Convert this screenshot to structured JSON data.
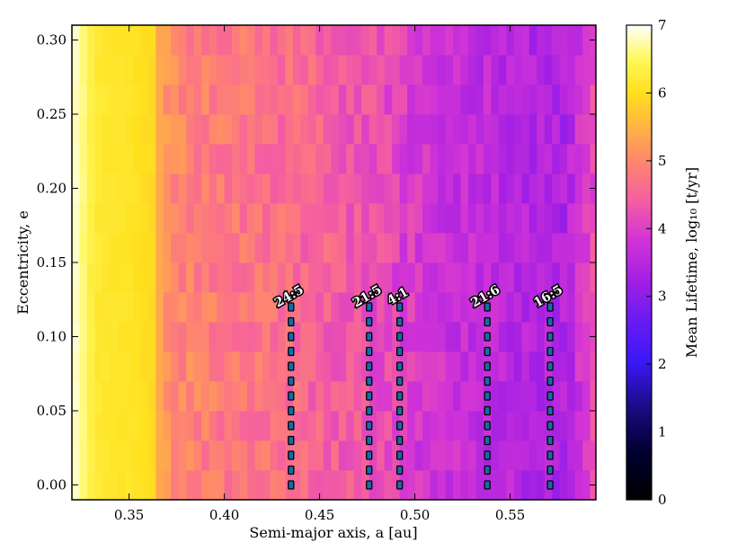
{
  "chart_data": {
    "type": "heatmap",
    "xlabel": "Semi-major axis, a [au]",
    "ylabel": "Eccentricity, e",
    "xlim": [
      0.32,
      0.595
    ],
    "ylim": [
      -0.01,
      0.31
    ],
    "x_ticks": [
      "0.35",
      "0.40",
      "0.45",
      "0.50",
      "0.55"
    ],
    "x_tick_values": [
      0.35,
      0.4,
      0.45,
      0.5,
      0.55
    ],
    "y_ticks": [
      "0.00",
      "0.05",
      "0.10",
      "0.15",
      "0.20",
      "0.25",
      "0.30"
    ],
    "y_tick_values": [
      0.0,
      0.05,
      0.1,
      0.15,
      0.2,
      0.25,
      0.3
    ],
    "colorbar": {
      "label": "Mean Lifetime, log₁₀ [t/yr]",
      "range": [
        0,
        7
      ],
      "ticks": [
        "0",
        "1",
        "2",
        "3",
        "4",
        "5",
        "6",
        "7"
      ],
      "colormap": "plasma-like (black-blue-purple-pink-orange-yellow-white)"
    },
    "grid": {
      "a_start": 0.32,
      "a_step": 0.004,
      "n_cols": 69,
      "e_start": -0.01,
      "e_step": 0.02,
      "n_rows": 16,
      "profile": [
        {
          "a": 0.32,
          "v": 6.9
        },
        {
          "a": 0.326,
          "v": 6.6
        },
        {
          "a": 0.332,
          "v": 6.2
        },
        {
          "a": 0.338,
          "v": 6.15
        },
        {
          "a": 0.35,
          "v": 6.1
        },
        {
          "a": 0.362,
          "v": 5.95
        },
        {
          "a": 0.368,
          "v": 5.1
        },
        {
          "a": 0.385,
          "v": 4.9
        },
        {
          "a": 0.4,
          "v": 4.8
        },
        {
          "a": 0.42,
          "v": 4.7
        },
        {
          "a": 0.44,
          "v": 4.6
        },
        {
          "a": 0.46,
          "v": 4.4
        },
        {
          "a": 0.48,
          "v": 4.2
        },
        {
          "a": 0.5,
          "v": 3.9
        },
        {
          "a": 0.52,
          "v": 3.7
        },
        {
          "a": 0.54,
          "v": 3.6
        },
        {
          "a": 0.56,
          "v": 3.45
        },
        {
          "a": 0.58,
          "v": 3.4
        },
        {
          "a": 0.588,
          "v": 3.9
        },
        {
          "a": 0.595,
          "v": 4.2
        }
      ]
    },
    "resonances": [
      {
        "label": "24:5",
        "a": 0.435,
        "e_min": 0.0,
        "e_max": 0.12,
        "e_step": 0.01
      },
      {
        "label": "21:5",
        "a": 0.476,
        "e_min": 0.0,
        "e_max": 0.12,
        "e_step": 0.01
      },
      {
        "label": "4:1",
        "a": 0.492,
        "e_min": 0.0,
        "e_max": 0.12,
        "e_step": 0.01
      },
      {
        "label": "21:6",
        "a": 0.538,
        "e_min": 0.0,
        "e_max": 0.12,
        "e_step": 0.01
      },
      {
        "label": "16:5",
        "a": 0.571,
        "e_min": 0.0,
        "e_max": 0.12,
        "e_step": 0.01
      }
    ],
    "marker_color": "#1a6aa8"
  }
}
